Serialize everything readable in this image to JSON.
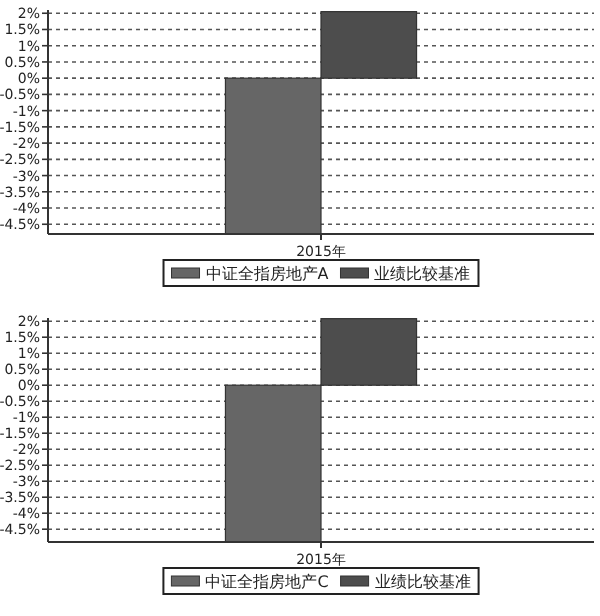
{
  "chart_data": [
    {
      "type": "bar",
      "categories": [
        "2015年"
      ],
      "series": [
        {
          "name": "中证全指房地产A",
          "color": "#666666",
          "values": [
            -4.79
          ]
        },
        {
          "name": "业绩比较基准",
          "color": "#4d4d4d",
          "values": [
            2.05
          ]
        }
      ],
      "ylim": [
        -4.8,
        2.1
      ],
      "yticks": [
        {
          "value": 2,
          "label": "2%"
        },
        {
          "value": 1.5,
          "label": "1.5%"
        },
        {
          "value": 1,
          "label": "1%"
        },
        {
          "value": 0.5,
          "label": "0.5%"
        },
        {
          "value": 0,
          "label": "0%"
        },
        {
          "value": -0.5,
          "label": "-0.5%"
        },
        {
          "value": -1,
          "label": "-1%"
        },
        {
          "value": -1.5,
          "label": "-1.5%"
        },
        {
          "value": -2,
          "label": "-2%"
        },
        {
          "value": -2.5,
          "label": "-2.5%"
        },
        {
          "value": -3,
          "label": "-3%"
        },
        {
          "value": -3.5,
          "label": "-3.5%"
        },
        {
          "value": -4,
          "label": "-4%"
        },
        {
          "value": -4.5,
          "label": "-4.5%"
        }
      ],
      "grid": "y",
      "legend": "bottom"
    },
    {
      "type": "bar",
      "categories": [
        "2015年"
      ],
      "series": [
        {
          "name": "中证全指房地产C",
          "color": "#666666",
          "values": [
            -4.9
          ]
        },
        {
          "name": "业绩比较基准",
          "color": "#4d4d4d",
          "values": [
            2.08
          ]
        }
      ],
      "ylim": [
        -4.9,
        2.1
      ],
      "yticks": [
        {
          "value": 2,
          "label": "2%"
        },
        {
          "value": 1.5,
          "label": "1.5%"
        },
        {
          "value": 1,
          "label": "1%"
        },
        {
          "value": 0.5,
          "label": "0.5%"
        },
        {
          "value": 0,
          "label": "0%"
        },
        {
          "value": -0.5,
          "label": "-0.5%"
        },
        {
          "value": -1,
          "label": "-1%"
        },
        {
          "value": -1.5,
          "label": "-1.5%"
        },
        {
          "value": -2,
          "label": "-2%"
        },
        {
          "value": -2.5,
          "label": "-2.5%"
        },
        {
          "value": -3,
          "label": "-3%"
        },
        {
          "value": -3.5,
          "label": "-3.5%"
        },
        {
          "value": -4,
          "label": "-4%"
        },
        {
          "value": -4.5,
          "label": "-4.5%"
        }
      ],
      "grid": "y",
      "legend": "bottom"
    }
  ]
}
